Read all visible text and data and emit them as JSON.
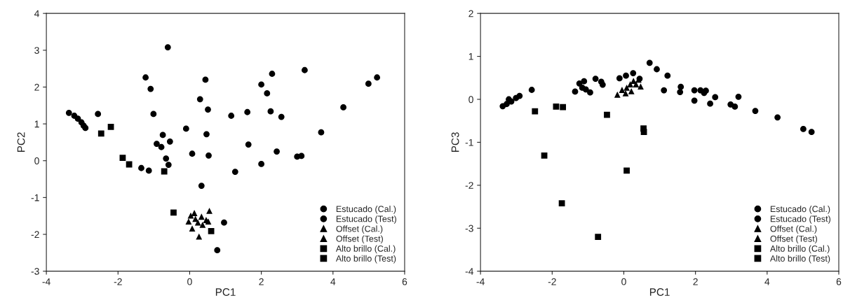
{
  "chart_data": [
    {
      "type": "scatter",
      "xlabel": "PC1",
      "ylabel": "PC2",
      "xlim": [
        -4,
        6
      ],
      "xticks": [
        -4,
        -2,
        0,
        2,
        4,
        6
      ],
      "ylim": [
        -3,
        4
      ],
      "yticks": [
        -3,
        -2,
        -1,
        0,
        1,
        2,
        3,
        4
      ],
      "grid": false,
      "legend": "bottom right",
      "series": [
        {
          "name": "Estucado (Cal.)",
          "color": "#000000",
          "marker": "circle",
          "x": [
            -3.37,
            -3.22,
            -3.12,
            -3.02,
            -2.96,
            -2.91,
            -2.56,
            -0.61,
            -1.23,
            -1.09,
            -1.01,
            -0.75,
            -0.55,
            -0.92,
            -0.79,
            -0.66,
            -0.59,
            -1.35,
            -1.14,
            -0.1,
            0.07,
            0.29,
            0.44,
            0.51,
            0.47,
            0.53,
            1.16,
            1.61,
            2.0,
            2.16,
            2.3,
            2.26,
            2.56,
            3.21,
            4.99,
            4.29,
            3.67
          ],
          "values": [
            1.3,
            1.22,
            1.14,
            1.04,
            0.95,
            0.89,
            1.27,
            3.08,
            2.26,
            1.95,
            1.27,
            0.7,
            0.52,
            0.46,
            0.37,
            0.06,
            -0.11,
            -0.2,
            -0.27,
            0.87,
            0.19,
            1.67,
            2.2,
            1.39,
            0.72,
            0.14,
            1.22,
            1.32,
            2.07,
            1.83,
            2.36,
            1.34,
            1.19,
            2.46,
            2.09,
            1.45,
            0.77
          ]
        },
        {
          "name": "Estucado (Test)",
          "color": "#000000",
          "marker": "circle",
          "x": [
            0.33,
            0.77,
            0.96,
            5.23,
            1.64,
            2.43,
            3.0,
            3.12,
            2.0,
            1.27
          ],
          "values": [
            -0.68,
            -2.43,
            -1.68,
            2.26,
            0.44,
            0.25,
            0.11,
            0.13,
            -0.09,
            -0.3
          ]
        },
        {
          "name": "Offset (Cal.)",
          "color": "#000000",
          "marker": "triangle",
          "x": [
            0.55,
            0.26,
            -0.03,
            0.07,
            0.13,
            0.33,
            0.46,
            0.23
          ],
          "values": [
            -1.36,
            -2.06,
            -1.65,
            -1.84,
            -1.42,
            -1.52,
            -1.61,
            -1.68
          ]
        },
        {
          "name": "Offset (Test)",
          "color": "#000000",
          "marker": "triangle",
          "x": [
            0.16,
            0.36,
            0.52,
            0.03
          ],
          "values": [
            -1.58,
            -1.74,
            -1.65,
            -1.49
          ]
        },
        {
          "name": "Alto brillo (Cal.)",
          "color": "#000000",
          "marker": "square",
          "x": [
            -2.47,
            -2.2,
            -1.87,
            -1.69,
            -0.71
          ],
          "values": [
            0.74,
            0.92,
            0.08,
            -0.1,
            -0.29
          ]
        },
        {
          "name": "Alto brillo (Test)",
          "color": "#000000",
          "marker": "square",
          "x": [
            -0.45,
            0.6
          ],
          "values": [
            -1.41,
            -1.91
          ]
        }
      ]
    },
    {
      "type": "scatter",
      "xlabel": "PC1",
      "ylabel": "PC3",
      "xlim": [
        -4,
        6
      ],
      "xticks": [
        -4,
        -2,
        0,
        2,
        4,
        6
      ],
      "ylim": [
        -4,
        2
      ],
      "yticks": [
        -4,
        -3,
        -2,
        -1,
        0,
        1,
        2
      ],
      "grid": false,
      "legend": "bottom right",
      "series": [
        {
          "name": "Estucado (Cal.)",
          "color": "#000000",
          "marker": "circle",
          "x": [
            -3.38,
            -3.27,
            -3.14,
            -3.01,
            -2.91,
            -3.21,
            -2.57,
            -1.36,
            -1.24,
            -1.11,
            -1.16,
            -1.06,
            -0.94,
            -0.79,
            -0.63,
            -0.59,
            -0.12,
            0.06,
            0.26,
            0.72,
            0.92,
            1.22,
            1.12,
            1.59,
            1.57,
            1.97,
            2.14,
            2.29,
            0.44
          ],
          "values": [
            -0.16,
            -0.11,
            -0.05,
            0.03,
            0.08,
            0.0,
            0.22,
            0.18,
            0.37,
            0.42,
            0.27,
            0.23,
            0.16,
            0.48,
            0.41,
            0.34,
            0.49,
            0.55,
            0.61,
            0.85,
            0.7,
            0.55,
            0.21,
            0.29,
            0.17,
            0.21,
            0.21,
            0.2,
            0.48
          ]
        },
        {
          "name": "Estucado (Test)",
          "color": "#000000",
          "marker": "circle",
          "x": [
            2.24,
            1.97,
            2.41,
            2.55,
            2.98,
            3.1,
            3.2,
            3.67,
            4.29,
            5.01,
            5.24
          ],
          "values": [
            0.15,
            -0.03,
            -0.1,
            0.05,
            -0.12,
            -0.17,
            0.06,
            -0.27,
            -0.42,
            -0.69,
            -0.76
          ]
        },
        {
          "name": "Offset (Cal.)",
          "color": "#000000",
          "marker": "triangle",
          "x": [
            -0.18,
            -0.05,
            0.08,
            0.18,
            0.27,
            0.41
          ],
          "values": [
            0.11,
            0.22,
            0.27,
            0.35,
            0.43,
            0.46
          ]
        },
        {
          "name": "Offset (Test)",
          "color": "#000000",
          "marker": "triangle",
          "x": [
            0.47,
            0.21,
            0.05,
            0.34
          ],
          "values": [
            0.3,
            0.19,
            0.14,
            0.35
          ]
        },
        {
          "name": "Alto brillo (Cal.)",
          "color": "#000000",
          "marker": "square",
          "x": [
            -2.48,
            -1.89,
            -1.7,
            -0.47,
            -2.22,
            -1.73,
            -0.72
          ],
          "values": [
            -0.28,
            -0.17,
            -0.18,
            -0.36,
            -1.31,
            -2.42,
            -3.2
          ]
        },
        {
          "name": "Alto brillo (Test)",
          "color": "#000000",
          "marker": "square",
          "x": [
            0.08,
            0.55,
            0.56
          ],
          "values": [
            -1.66,
            -0.68,
            -0.76
          ]
        }
      ]
    }
  ]
}
